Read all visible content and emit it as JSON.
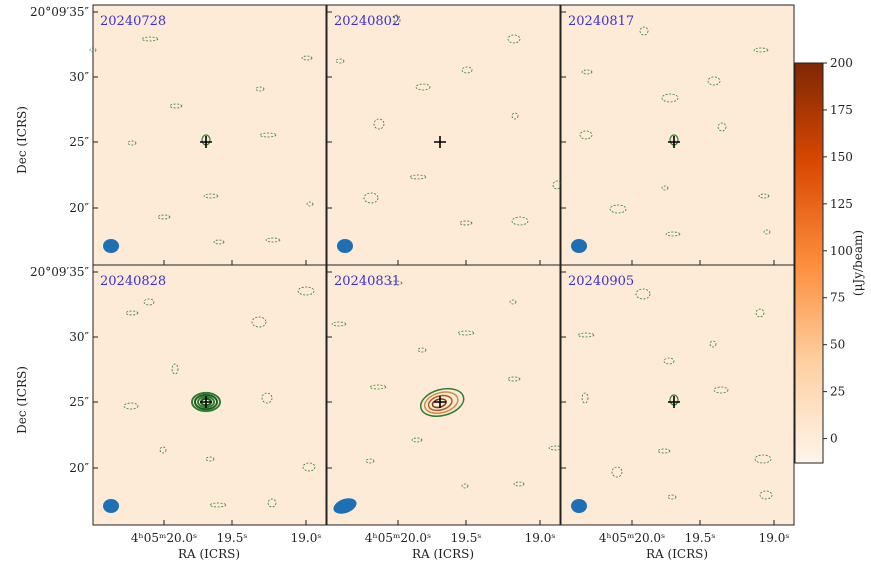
{
  "figure": {
    "panels": [
      {
        "label": "20240728"
      },
      {
        "label": "20240802"
      },
      {
        "label": "20240817"
      },
      {
        "label": "20240828"
      },
      {
        "label": "20240831"
      },
      {
        "label": "20240905"
      }
    ],
    "dec_ticks": [
      "20°09′35″",
      "30″",
      "25″",
      "20″"
    ],
    "ra_ticks": [
      "4ʰ05ᵐ20.0ˢ",
      "19.5ˢ",
      "19.0ˢ"
    ],
    "x_label": "RA (ICRS)",
    "y_label": "Dec (ICRS)",
    "colorbar": {
      "label": "(μJy/beam)",
      "lim": [
        -13,
        200
      ],
      "ticks": [
        0,
        25,
        50,
        75,
        100,
        125,
        150,
        175,
        200
      ]
    }
  }
}
